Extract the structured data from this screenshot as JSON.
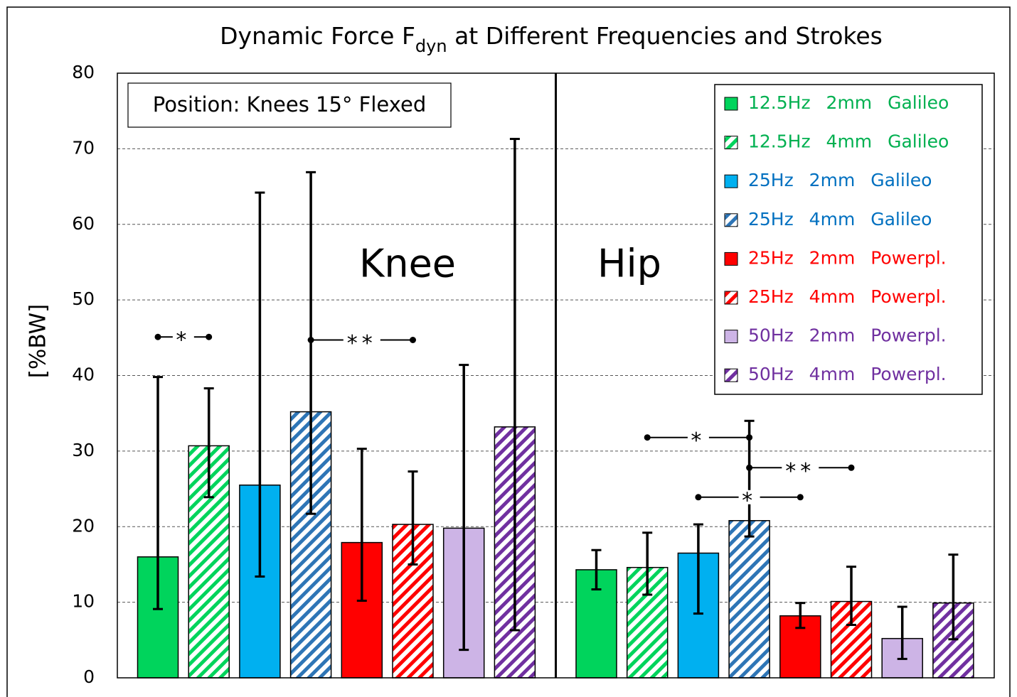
{
  "chart_data": {
    "type": "bar",
    "title_parts": [
      "Dynamic Force F",
      "dyn",
      " at Different Frequencies and Strokes"
    ],
    "ylabel": "[%BW]",
    "position_note": "Position: Knees 15° Flexed",
    "categories": [
      "Knee",
      "Hip"
    ],
    "ylim": [
      0,
      80
    ],
    "yticks": [
      0,
      10,
      20,
      30,
      40,
      50,
      60,
      70,
      80
    ],
    "grid": true,
    "legend_position": "upper right",
    "series": [
      {
        "name": "12.5Hz 2mm Galileo",
        "color": "#00d45c",
        "text_color": "#00b050",
        "hatch": false,
        "values": [
          16.0,
          14.3
        ],
        "error_minus": [
          6.9,
          2.6
        ],
        "error_plus": [
          23.8,
          2.6
        ]
      },
      {
        "name": "12.5Hz 4mm Galileo",
        "color": "#00d45c",
        "text_color": "#00b050",
        "hatch": true,
        "values": [
          30.7,
          14.6
        ],
        "error_minus": [
          6.8,
          3.6
        ],
        "error_plus": [
          7.6,
          4.6
        ]
      },
      {
        "name": "25Hz 2mm Galileo",
        "color": "#00b0f0",
        "text_color": "#0070c0",
        "hatch": false,
        "values": [
          25.5,
          16.5
        ],
        "error_minus": [
          12.1,
          8.0
        ],
        "error_plus": [
          38.7,
          3.8
        ]
      },
      {
        "name": "25Hz 4mm Galileo",
        "color": "#2e75b6",
        "text_color": "#0070c0",
        "hatch": true,
        "values": [
          35.2,
          20.8
        ],
        "error_minus": [
          13.5,
          2.1
        ],
        "error_plus": [
          31.7,
          13.2
        ]
      },
      {
        "name": "25Hz 2mm Powerpl.",
        "color": "#ff0000",
        "text_color": "#ff0000",
        "hatch": false,
        "values": [
          17.9,
          8.2
        ],
        "error_minus": [
          7.7,
          1.6
        ],
        "error_plus": [
          12.4,
          1.7
        ]
      },
      {
        "name": "25Hz 4mm Powerpl.",
        "color": "#ff0000",
        "text_color": "#ff0000",
        "hatch": true,
        "values": [
          20.3,
          10.1
        ],
        "error_minus": [
          5.3,
          3.1
        ],
        "error_plus": [
          7.0,
          4.6
        ]
      },
      {
        "name": "50Hz 2mm Powerpl.",
        "color": "#cdb4e6",
        "text_color": "#7030a0",
        "hatch": false,
        "values": [
          19.8,
          5.2
        ],
        "error_minus": [
          16.1,
          2.7
        ],
        "error_plus": [
          21.6,
          4.2
        ]
      },
      {
        "name": "50Hz 4mm Powerpl.",
        "color": "#7030a0",
        "text_color": "#7030a0",
        "hatch": true,
        "values": [
          33.2,
          9.9
        ],
        "error_minus": [
          26.9,
          4.8
        ],
        "error_plus": [
          38.1,
          6.4
        ]
      }
    ],
    "annotations": [
      {
        "text": "*",
        "group": 0,
        "from": 0,
        "to": 1,
        "y": 45.1
      },
      {
        "text": "**",
        "group": 0,
        "from": 3,
        "to": 5,
        "y": 44.7
      },
      {
        "text": "*",
        "group": 1,
        "from": 1,
        "to": 3,
        "y": 31.8
      },
      {
        "text": "**",
        "group": 1,
        "from": 3,
        "to": 5,
        "y": 27.8
      },
      {
        "text": "*",
        "group": 1,
        "from": 2,
        "to": 4,
        "y": 23.9
      }
    ]
  }
}
